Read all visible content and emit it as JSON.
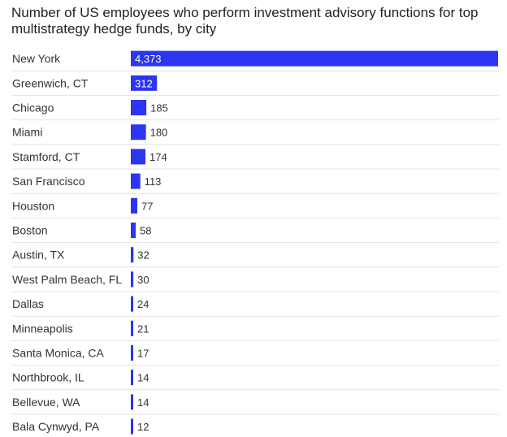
{
  "chart_data": {
    "type": "bar",
    "orientation": "horizontal",
    "title": "Number of US employees who perform investment advisory functions for top multistrategy hedge funds, by city",
    "xlabel": "",
    "ylabel": "",
    "xlim": [
      0,
      4373
    ],
    "grid": false,
    "bar_color": "#2b35f2",
    "categories": [
      "New York",
      "Greenwich, CT",
      "Chicago",
      "Miami",
      "Stamford, CT",
      "San Francisco",
      "Houston",
      "Boston",
      "Austin, TX",
      "West Palm Beach, FL",
      "Dallas",
      "Minneapolis",
      "Santa Monica, CA",
      "Northbrook, IL",
      "Bellevue, WA",
      "Bala Cynwyd, PA"
    ],
    "values": [
      4373,
      312,
      185,
      180,
      174,
      113,
      77,
      58,
      32,
      30,
      24,
      21,
      17,
      14,
      14,
      12
    ],
    "value_labels": [
      "4,373",
      "312",
      "185",
      "180",
      "174",
      "113",
      "77",
      "58",
      "32",
      "30",
      "24",
      "21",
      "17",
      "14",
      "14",
      "12"
    ],
    "labels_inside_for": [
      "New York",
      "Greenwich, CT"
    ]
  }
}
